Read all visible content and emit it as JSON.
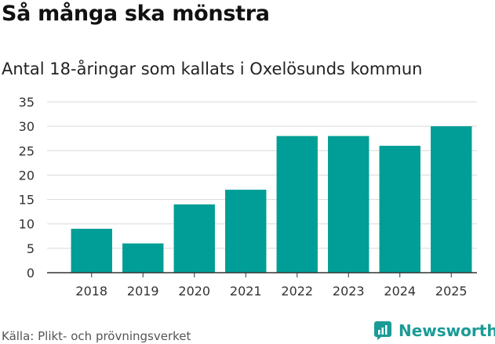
{
  "header": {
    "title": "Så många ska mönstra",
    "subtitle": "Antal 18-åringar som kallats i Oxelösunds kommun"
  },
  "footer": {
    "source": "Källa: Plikt- och prövningsverket",
    "brand": "Newsworthy",
    "brand_icon": "newsworthy-logo-icon"
  },
  "colors": {
    "bar": "#009e96",
    "grid": "#d9d9d9",
    "axis": "#333333",
    "brand": "#1a9b96"
  },
  "chart_data": {
    "type": "bar",
    "title": "Så många ska mönstra",
    "subtitle": "Antal 18-åringar som kallats i Oxelösunds kommun",
    "categories": [
      "2018",
      "2019",
      "2020",
      "2021",
      "2022",
      "2023",
      "2024",
      "2025"
    ],
    "values": [
      9,
      6,
      14,
      17,
      28,
      28,
      26,
      30
    ],
    "xlabel": "",
    "ylabel": "",
    "ylim": [
      0,
      35
    ],
    "yticks": [
      0,
      5,
      10,
      15,
      20,
      25,
      30,
      35
    ],
    "grid": true,
    "legend": "none"
  }
}
